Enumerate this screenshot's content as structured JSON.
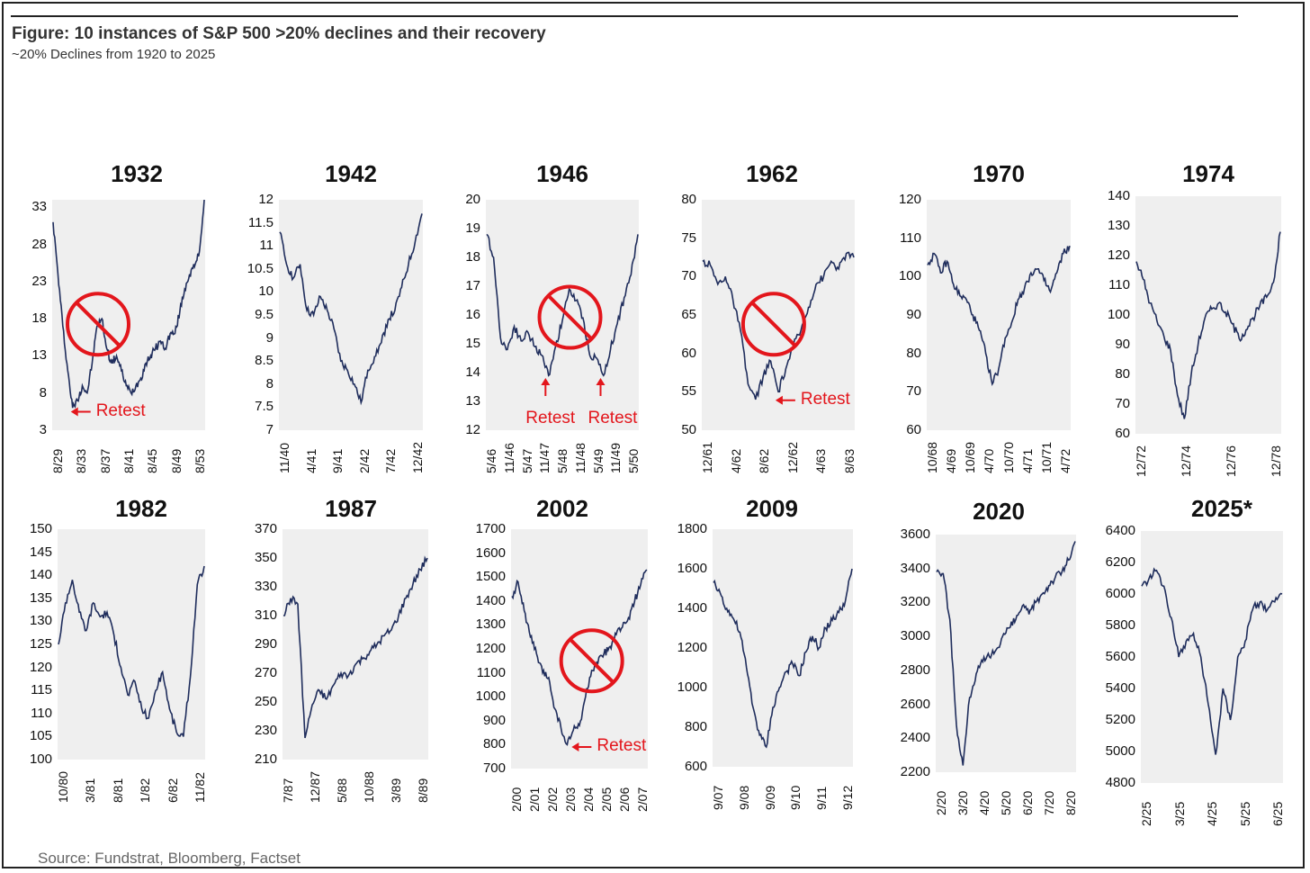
{
  "title": "Figure: 10 instances of S&P 500 >20% declines and their recovery",
  "subtitle": "~20% Declines from 1920 to 2025",
  "source": "Source: Fundstrat, Bloomberg, Factset",
  "colors": {
    "line": "#1f2d5c",
    "annotation": "#e3161c",
    "plot_bg": "#efefef"
  },
  "chart_data": [
    {
      "type": "line",
      "title": "1932",
      "ylim": [
        3,
        34
      ],
      "yticks": [
        "3",
        "8",
        "13",
        "18",
        "23",
        "28",
        "33"
      ],
      "xticks": [
        "8/29",
        "8/33",
        "8/37",
        "8/41",
        "8/45",
        "8/49",
        "8/53"
      ],
      "marker": "no-sign",
      "series": [
        {
          "name": "S&P 500",
          "values": [
            31,
            24,
            17,
            11,
            6,
            7,
            9,
            8,
            12,
            17,
            18,
            14,
            12,
            13,
            11,
            9,
            8,
            9,
            10,
            12,
            13,
            14,
            15,
            14,
            16,
            16,
            19,
            22,
            24,
            25,
            27,
            34
          ]
        }
      ],
      "annotations": [
        {
          "text": "Retest",
          "at": 0.11
        }
      ]
    },
    {
      "type": "line",
      "title": "1942",
      "ylim": [
        7,
        12
      ],
      "yticks": [
        "7",
        "7.5",
        "8",
        "8.5",
        "9",
        "9.5",
        "10",
        "10.5",
        "11",
        "11.5",
        "12"
      ],
      "xticks": [
        "11/40",
        "4/41",
        "9/41",
        "2/42",
        "7/42",
        "12/42"
      ],
      "series": [
        {
          "name": "S&P 500",
          "values": [
            11.3,
            10.6,
            10.3,
            10.6,
            9.6,
            9.5,
            9.9,
            9.6,
            9.2,
            8.5,
            8.3,
            8.0,
            7.6,
            8.3,
            8.6,
            8.9,
            9.4,
            9.6,
            10.1,
            10.6,
            11.1,
            11.7
          ]
        }
      ],
      "annotations": []
    },
    {
      "type": "line",
      "title": "1946",
      "ylim": [
        12,
        20
      ],
      "yticks": [
        "12",
        "13",
        "14",
        "15",
        "16",
        "17",
        "18",
        "19",
        "20"
      ],
      "xticks": [
        "5/46",
        "11/46",
        "5/47",
        "11/47",
        "5/48",
        "11/48",
        "5/49",
        "11/49",
        "5/50"
      ],
      "marker": "no-sign",
      "series": [
        {
          "name": "S&P 500",
          "values": [
            18.8,
            18,
            15.2,
            14.8,
            15.6,
            15.1,
            15.4,
            14.9,
            14.6,
            13.9,
            14.9,
            15.8,
            16.9,
            16.5,
            15.9,
            14.6,
            14.5,
            13.9,
            14.8,
            15.7,
            16.6,
            17.4,
            18.8
          ]
        }
      ],
      "annotations": [
        {
          "text": "Retest",
          "at": 0.39
        },
        {
          "text": "Retest",
          "at": 0.75
        }
      ]
    },
    {
      "type": "line",
      "title": "1962",
      "ylim": [
        50,
        80
      ],
      "yticks": [
        "50",
        "55",
        "60",
        "65",
        "70",
        "75",
        "80"
      ],
      "xticks": [
        "12/61",
        "4/62",
        "8/62",
        "12/62",
        "4/63",
        "8/63"
      ],
      "marker": "no-sign",
      "series": [
        {
          "name": "S&P 500",
          "values": [
            72,
            71.5,
            69,
            70,
            67,
            63,
            56,
            54,
            57,
            59,
            55,
            58,
            61,
            63,
            66,
            69,
            70,
            72,
            71,
            73,
            72.5
          ]
        }
      ],
      "annotations": [
        {
          "text": "Retest",
          "at": 0.47
        }
      ]
    },
    {
      "type": "line",
      "title": "1970",
      "ylim": [
        60,
        120
      ],
      "yticks": [
        "60",
        "70",
        "80",
        "90",
        "100",
        "110",
        "120"
      ],
      "xticks": [
        "10/68",
        "4/69",
        "10/69",
        "4/70",
        "10/70",
        "4/71",
        "10/71",
        "4/72"
      ],
      "series": [
        {
          "name": "S&P 500",
          "values": [
            103,
            106,
            101,
            104,
            98,
            95,
            94,
            90,
            86,
            80,
            72,
            76,
            84,
            88,
            94,
            97,
            101,
            102,
            99,
            96,
            101,
            106,
            108
          ]
        }
      ],
      "annotations": []
    },
    {
      "type": "line",
      "title": "1974",
      "ylim": [
        60,
        140
      ],
      "yticks": [
        "60",
        "70",
        "80",
        "90",
        "100",
        "110",
        "120",
        "130",
        "140"
      ],
      "xticks": [
        "12/72",
        "12/74",
        "12/76",
        "12/78"
      ],
      "series": [
        {
          "name": "S&P 500",
          "values": [
            118,
            112,
            104,
            98,
            93,
            88,
            73,
            65,
            80,
            90,
            99,
            102,
            104,
            101,
            97,
            92,
            95,
            99,
            103,
            106,
            111,
            128
          ]
        }
      ],
      "annotations": []
    },
    {
      "type": "line",
      "title": "1982",
      "ylim": [
        100,
        150
      ],
      "yticks": [
        "100",
        "105",
        "110",
        "115",
        "120",
        "125",
        "130",
        "135",
        "140",
        "145",
        "150"
      ],
      "xticks": [
        "10/80",
        "3/81",
        "8/81",
        "1/82",
        "6/82",
        "11/82"
      ],
      "series": [
        {
          "name": "S&P 500",
          "values": [
            125,
            134,
            139,
            132,
            128,
            134,
            131,
            132,
            127,
            120,
            114,
            117,
            111,
            109,
            115,
            119,
            111,
            106,
            105,
            118,
            138,
            142
          ]
        }
      ],
      "annotations": []
    },
    {
      "type": "line",
      "title": "1987",
      "ylim": [
        210,
        370
      ],
      "yticks": [
        "210",
        "230",
        "250",
        "270",
        "290",
        "310",
        "330",
        "350",
        "370"
      ],
      "xticks": [
        "7/87",
        "12/87",
        "5/88",
        "10/88",
        "3/89",
        "8/89"
      ],
      "series": [
        {
          "name": "S&P 500",
          "values": [
            310,
            322,
            318,
            225,
            248,
            258,
            252,
            262,
            270,
            268,
            276,
            280,
            285,
            290,
            296,
            300,
            310,
            322,
            332,
            342,
            350
          ]
        }
      ],
      "annotations": []
    },
    {
      "type": "line",
      "title": "2002",
      "ylim": [
        700,
        1700
      ],
      "yticks": [
        "700",
        "800",
        "900",
        "1000",
        "1100",
        "1200",
        "1300",
        "1400",
        "1500",
        "1600",
        "1700"
      ],
      "xticks": [
        "2/00",
        "2/01",
        "2/02",
        "2/03",
        "2/04",
        "2/05",
        "2/06",
        "2/07"
      ],
      "marker": "no-sign",
      "series": [
        {
          "name": "S&P 500",
          "values": [
            1420,
            1480,
            1360,
            1250,
            1180,
            1100,
            1080,
            950,
            870,
            800,
            860,
            880,
            1000,
            1110,
            1140,
            1180,
            1210,
            1260,
            1290,
            1330,
            1400,
            1470,
            1530
          ]
        }
      ],
      "annotations": [
        {
          "text": "Retest",
          "at": 0.43
        }
      ]
    },
    {
      "type": "line",
      "title": "2009",
      "ylim": [
        600,
        1800
      ],
      "yticks": [
        "600",
        "800",
        "1000",
        "1200",
        "1400",
        "1600",
        "1800"
      ],
      "xticks": [
        "9/07",
        "9/08",
        "9/09",
        "9/10",
        "9/11",
        "9/12"
      ],
      "series": [
        {
          "name": "S&P 500",
          "values": [
            1530,
            1480,
            1400,
            1350,
            1280,
            1100,
            900,
            760,
            700,
            900,
            1000,
            1080,
            1120,
            1060,
            1180,
            1260,
            1200,
            1300,
            1340,
            1380,
            1440,
            1600
          ]
        }
      ],
      "annotations": []
    },
    {
      "type": "line",
      "title": "2020",
      "ylim": [
        2200,
        3600
      ],
      "yticks": [
        "2200",
        "2400",
        "2600",
        "2800",
        "3000",
        "3200",
        "3400",
        "3600"
      ],
      "xticks": [
        "2/20",
        "3/20",
        "4/20",
        "5/20",
        "6/20",
        "7/20",
        "8/20"
      ],
      "series": [
        {
          "name": "S&P 500",
          "values": [
            3380,
            3370,
            3100,
            2480,
            2240,
            2640,
            2780,
            2850,
            2880,
            2920,
            3000,
            3050,
            3100,
            3180,
            3130,
            3200,
            3250,
            3300,
            3350,
            3380,
            3450,
            3560
          ]
        }
      ],
      "annotations": []
    },
    {
      "type": "line",
      "title": "2025*",
      "ylim": [
        4800,
        6400
      ],
      "yticks": [
        "4800",
        "5000",
        "5200",
        "5400",
        "5600",
        "5800",
        "6000",
        "6200",
        "6400"
      ],
      "xticks": [
        "2/25",
        "3/25",
        "4/25",
        "5/25",
        "6/25"
      ],
      "series": [
        {
          "name": "S&P 500",
          "values": [
            6050,
            6100,
            6150,
            6050,
            5850,
            5600,
            5700,
            5750,
            5600,
            5300,
            4980,
            5400,
            5200,
            5600,
            5700,
            5900,
            5950,
            5900,
            5950,
            6000
          ]
        }
      ],
      "annotations": []
    }
  ]
}
